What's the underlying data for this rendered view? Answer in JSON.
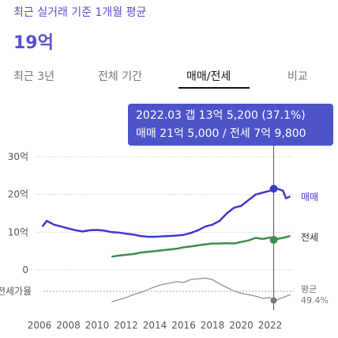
{
  "header": {
    "label": "최근 실거래 기준 1개월 평균",
    "value": "19억"
  },
  "tabs": [
    {
      "label": "최근 3년",
      "active": false
    },
    {
      "label": "전체 기간",
      "active": false
    },
    {
      "label": "매매/전세",
      "active": true
    },
    {
      "label": "비교",
      "active": false
    }
  ],
  "tooltip": {
    "line1": "2022.03  갭 13억 5,200 (37.1%)",
    "line2": "매매 21억 5,000 / 전세 7억 9,800"
  },
  "colors": {
    "accent": "#5a4fcf",
    "sale": "#3d39c9",
    "jeonse": "#3f8e4c",
    "ratio": "#888888",
    "tooltip_bg": "#4d54c9"
  },
  "chart_data": {
    "type": "line",
    "x_ticks": [
      "2006",
      "2008",
      "2010",
      "2012",
      "2014",
      "2016",
      "2018",
      "2020",
      "2022"
    ],
    "y_ticks": [
      {
        "value": 30,
        "label": "30억"
      },
      {
        "value": 20,
        "label": "20억"
      },
      {
        "value": 10,
        "label": "10억"
      },
      {
        "value": 0,
        "label": "0"
      }
    ],
    "ylim": [
      0,
      30
    ],
    "series": [
      {
        "name": "매매",
        "unit": "억",
        "x": [
          2006.2,
          2006.5,
          2007,
          2007.5,
          2008,
          2008.5,
          2009,
          2009.5,
          2010,
          2010.5,
          2011,
          2011.5,
          2012,
          2012.5,
          2013,
          2013.5,
          2014,
          2014.5,
          2015,
          2015.5,
          2016,
          2016.5,
          2017,
          2017.5,
          2018,
          2018.5,
          2019,
          2019.5,
          2020,
          2020.5,
          2021,
          2021.5,
          2022,
          2022.25,
          2022.5,
          2022.9,
          2023.1,
          2023.4
        ],
        "values": [
          11.5,
          13.0,
          12.0,
          11.5,
          11.0,
          10.5,
          10.2,
          10.5,
          10.6,
          10.4,
          10.0,
          9.9,
          9.6,
          9.4,
          9.0,
          8.8,
          8.8,
          8.9,
          9.0,
          9.1,
          9.3,
          9.8,
          10.5,
          11.5,
          12.0,
          13.0,
          15.0,
          16.5,
          17.0,
          18.5,
          20.0,
          20.5,
          21.0,
          21.5,
          21.5,
          21.0,
          19.0,
          19.5
        ]
      },
      {
        "name": "전세",
        "unit": "억",
        "x": [
          2011,
          2011.5,
          2012,
          2012.5,
          2013,
          2013.5,
          2014,
          2014.5,
          2015,
          2015.5,
          2016,
          2016.5,
          2017,
          2017.5,
          2018,
          2018.5,
          2019,
          2019.5,
          2020,
          2020.5,
          2021,
          2021.5,
          2022,
          2022.25,
          2022.5,
          2023,
          2023.4
        ],
        "values": [
          3.5,
          3.8,
          4.0,
          4.2,
          4.6,
          4.8,
          5.0,
          5.2,
          5.4,
          5.6,
          6.0,
          6.2,
          6.5,
          6.8,
          7.0,
          7.0,
          7.1,
          7.0,
          7.4,
          7.8,
          8.5,
          8.2,
          8.6,
          7.98,
          8.2,
          8.6,
          9.0
        ]
      },
      {
        "name": "전세가율",
        "unit": "%",
        "x": [
          2011,
          2011.5,
          2012,
          2012.5,
          2013,
          2013.5,
          2014,
          2014.5,
          2015,
          2015.5,
          2016,
          2016.5,
          2017,
          2017.5,
          2018,
          2018.5,
          2019,
          2019.5,
          2020,
          2020.5,
          2021,
          2021.5,
          2022,
          2022.25,
          2022.5,
          2023,
          2023.4
        ],
        "values": [
          35,
          38,
          41,
          45,
          48,
          52,
          56,
          59,
          61,
          63,
          62,
          66,
          67,
          68,
          66,
          60,
          55,
          50,
          47,
          45,
          43,
          40,
          41,
          37.1,
          38,
          42,
          45
        ]
      }
    ],
    "series_labels": {
      "sale": "매매",
      "jeonse": "전세"
    },
    "ratio_label": "전세가율",
    "ratio_avg": {
      "label": "평균",
      "value": "49.4%"
    },
    "crosshair_x": 2022.25
  }
}
